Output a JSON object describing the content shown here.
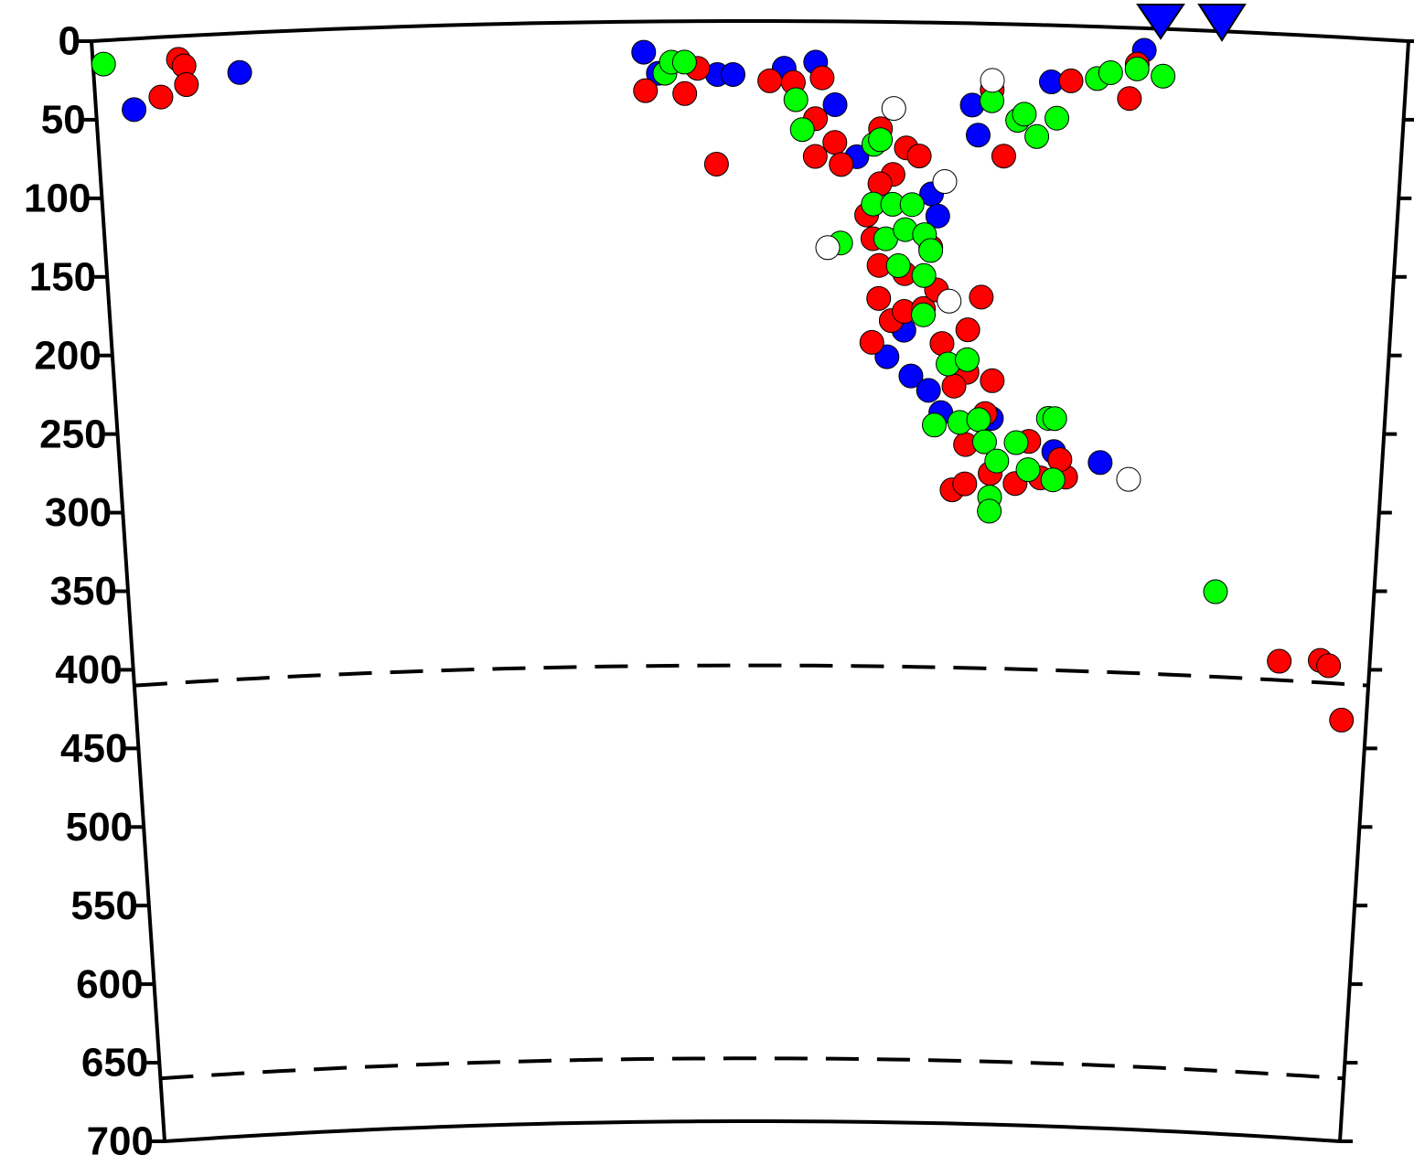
{
  "chart_data": {
    "type": "scatter",
    "xlim": [
      0,
      100
    ],
    "ylim": [
      0,
      700
    ],
    "yticks": [
      0,
      50,
      100,
      150,
      200,
      250,
      300,
      350,
      400,
      450,
      500,
      550,
      600,
      650,
      700
    ],
    "hlines": [
      410,
      660
    ],
    "series": [
      {
        "color": "#0000ff",
        "x": [
          2.9,
          11.1,
          41.9,
          43,
          47.5,
          48.7,
          52.6,
          55,
          56.5,
          58.2,
          67,
          67.5,
          73,
          80,
          77.7,
          60.7,
          62.6,
          64,
          65,
          69,
          74,
          62,
          64,
          64.5
        ],
        "values": [
          45,
          25,
          19.5,
          33,
          34,
          34,
          30,
          26,
          53,
          86,
          52,
          71,
          36,
          14,
          277,
          213,
          225,
          234,
          248,
          251,
          271,
          196,
          109,
          123
        ]
      },
      {
        "color": "#ff0000",
        "x": [
          6.5,
          6.9,
          7,
          5,
          42,
          45,
          46,
          47.4,
          51.5,
          53.3,
          55.5,
          55,
          55,
          56.5,
          57,
          60,
          62,
          63,
          61,
          60,
          59,
          59.5,
          60,
          60,
          61,
          62,
          63.5,
          64.5,
          68,
          59.5,
          65,
          67,
          66,
          67,
          69,
          66,
          67,
          68.5,
          66,
          67,
          69,
          71,
          72,
          73,
          75,
          74.5,
          69.5,
          68.5,
          74.5,
          79,
          79.5,
          92.7,
          96,
          96.7,
          98,
          62,
          64
        ],
        "values": [
          14.7,
          19,
          31,
          38,
          44,
          46,
          30,
          91,
          38,
          39,
          36,
          62,
          86,
          77,
          91,
          68,
          80,
          85,
          97,
          103,
          123,
          138,
          155,
          176,
          190,
          184,
          182,
          170,
          174,
          204,
          204,
          195,
          219,
          222,
          227,
          231,
          268,
          248,
          297,
          293,
          286,
          292,
          265,
          288,
          287,
          276,
          84,
          42,
          35,
          45,
          23,
          398,
          396,
          399,
          433,
          160,
          143
        ]
      },
      {
        "color": "#00ff00",
        "x": [
          0.8,
          43.5,
          44,
          45,
          53.5,
          54,
          59.5,
          60,
          57,
          59.5,
          61,
          62.5,
          60.5,
          62,
          63.5,
          64,
          63.5,
          61.5,
          63.5,
          65.5,
          67,
          64.5,
          66.5,
          68,
          68.5,
          69.5,
          71,
          69,
          69,
          72,
          74,
          73.5,
          74,
          68.5,
          70.5,
          71,
          72,
          73.5,
          76.5,
          77.5,
          79.5,
          81.5,
          87.3
        ],
        "values": [
          15,
          33,
          26,
          26,
          50,
          69,
          78,
          75,
          141,
          116,
          116,
          116,
          138,
          132,
          135,
          145,
          161,
          155,
          186,
          217,
          214,
          256,
          254,
          252,
          266,
          278,
          266,
          301,
          310,
          283,
          289,
          250,
          250,
          49,
          61,
          57,
          71,
          59,
          33,
          29,
          26,
          30,
          356
        ]
      },
      {
        "color": "#ffffff",
        "x": [
          68.5,
          61,
          65,
          56,
          65.5,
          80
        ],
        "values": [
          36,
          55,
          101,
          144,
          177,
          287
        ]
      }
    ]
  }
}
